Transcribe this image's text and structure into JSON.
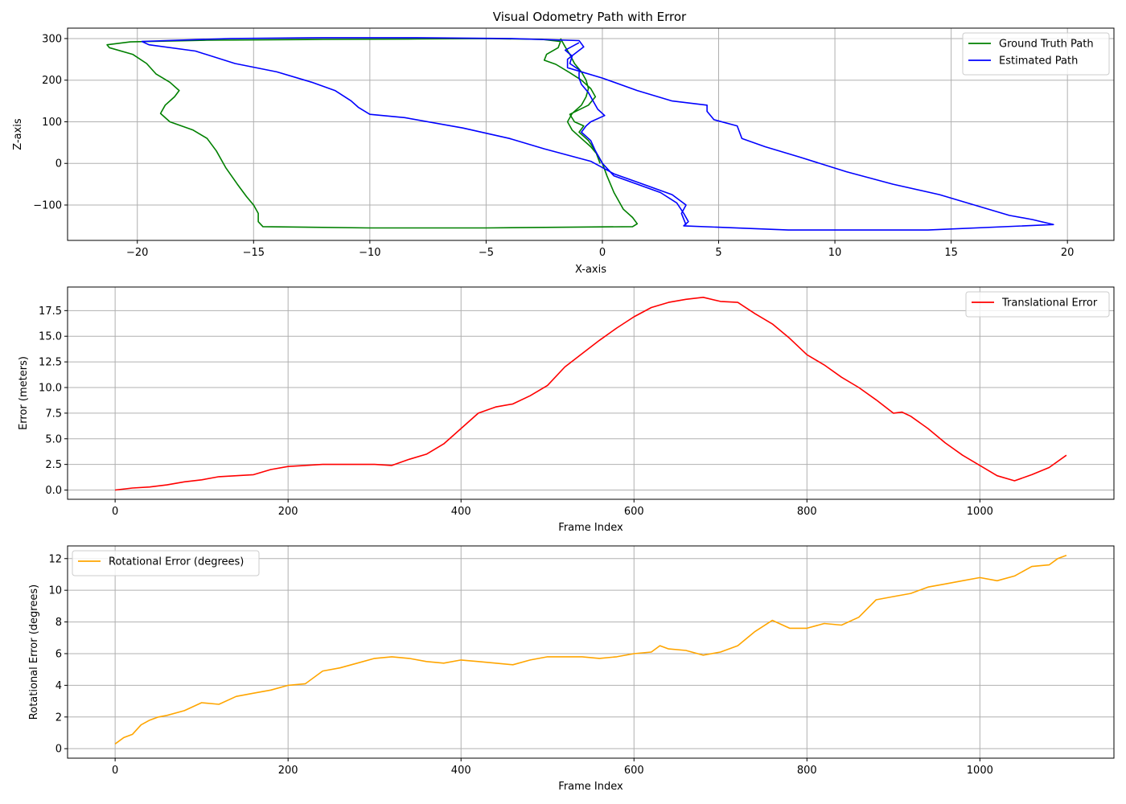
{
  "figure": {
    "title": "Visual Odometry Path with Error"
  },
  "colors": {
    "ground_truth": "#008000",
    "estimated": "#0000ff",
    "translational": "#ff0000",
    "rotational": "#ffa500",
    "grid": "#b0b0b0"
  },
  "chart_data": [
    {
      "type": "line",
      "title": "Visual Odometry Path with Error",
      "xlabel": "X-axis",
      "ylabel": "Z-axis",
      "xlim": [
        -23,
        22
      ],
      "ylim": [
        -185,
        325
      ],
      "xticks": [
        -20,
        -15,
        -10,
        -5,
        0,
        5,
        10,
        15,
        20
      ],
      "yticks": [
        -100,
        0,
        100,
        200,
        300
      ],
      "grid": true,
      "legend_placement": "top-right",
      "series": [
        {
          "name": "Ground Truth Path",
          "color": "#008000",
          "points": [
            [
              -1.8,
              300
            ],
            [
              -1.6,
              280
            ],
            [
              -1.4,
              262
            ],
            [
              -1.2,
              240
            ],
            [
              -0.9,
              220
            ],
            [
              -0.7,
              200
            ],
            [
              -0.6,
              180
            ],
            [
              -0.7,
              160
            ],
            [
              -0.9,
              140
            ],
            [
              -1.3,
              120
            ],
            [
              -1.5,
              100
            ],
            [
              -1.3,
              80
            ],
            [
              -0.9,
              60
            ],
            [
              -0.5,
              40
            ],
            [
              -0.2,
              20
            ],
            [
              0.0,
              0
            ],
            [
              0.2,
              -30
            ],
            [
              0.5,
              -70
            ],
            [
              0.9,
              -110
            ],
            [
              1.3,
              -130
            ],
            [
              1.5,
              -145
            ],
            [
              1.3,
              -152
            ],
            [
              -5,
              -155
            ],
            [
              -10,
              -155
            ],
            [
              -14.6,
              -152
            ],
            [
              -14.8,
              -140
            ],
            [
              -14.8,
              -120
            ],
            [
              -15.0,
              -100
            ],
            [
              -15.3,
              -80
            ],
            [
              -15.7,
              -50
            ],
            [
              -16.2,
              -10
            ],
            [
              -16.6,
              30
            ],
            [
              -17.0,
              60
            ],
            [
              -17.6,
              80
            ],
            [
              -18.6,
              100
            ],
            [
              -19.0,
              120
            ],
            [
              -18.8,
              140
            ],
            [
              -18.4,
              160
            ],
            [
              -18.2,
              175
            ],
            [
              -18.6,
              195
            ],
            [
              -19.2,
              215
            ],
            [
              -19.6,
              240
            ],
            [
              -20.2,
              262
            ],
            [
              -21.2,
              278
            ],
            [
              -21.3,
              285
            ],
            [
              -20.3,
              292
            ],
            [
              -17,
              296
            ],
            [
              -12,
              298
            ],
            [
              -8,
              299
            ],
            [
              -5,
              300
            ],
            [
              -2.6,
              298
            ],
            [
              -1.8,
              293
            ],
            [
              -1.9,
              278
            ],
            [
              -2.4,
              262
            ],
            [
              -2.5,
              248
            ],
            [
              -2.0,
              238
            ],
            [
              -1.4,
              218
            ],
            [
              -0.9,
              200
            ],
            [
              -0.5,
              180
            ],
            [
              -0.3,
              160
            ],
            [
              -0.6,
              140
            ],
            [
              -1.4,
              118
            ],
            [
              -1.2,
              100
            ],
            [
              -0.8,
              90
            ],
            [
              -1.0,
              75
            ],
            [
              -0.6,
              55
            ],
            [
              -0.3,
              30
            ],
            [
              -0.1,
              0
            ]
          ]
        },
        {
          "name": "Estimated Path",
          "color": "#0000ff",
          "points": [
            [
              -1.0,
              290
            ],
            [
              -1.6,
              272
            ],
            [
              -1.3,
              258
            ],
            [
              -1.4,
              240
            ],
            [
              -1.0,
              225
            ],
            [
              -1.0,
              205
            ],
            [
              -0.9,
              190
            ],
            [
              -0.6,
              170
            ],
            [
              -0.4,
              150
            ],
            [
              -0.2,
              130
            ],
            [
              0.1,
              115
            ],
            [
              -0.5,
              100
            ],
            [
              -0.7,
              90
            ],
            [
              -0.9,
              75
            ],
            [
              -0.5,
              55
            ],
            [
              -0.3,
              30
            ],
            [
              0.0,
              0
            ],
            [
              0.5,
              -30
            ],
            [
              1.5,
              -50
            ],
            [
              2.5,
              -70
            ],
            [
              3.2,
              -95
            ],
            [
              3.5,
              -120
            ],
            [
              3.7,
              -140
            ],
            [
              3.5,
              -150
            ],
            [
              8,
              -160
            ],
            [
              14,
              -160
            ],
            [
              19.4,
              -147
            ],
            [
              18.5,
              -135
            ],
            [
              17.5,
              -125
            ],
            [
              16.0,
              -100
            ],
            [
              14.5,
              -75
            ],
            [
              12.5,
              -50
            ],
            [
              10.5,
              -20
            ],
            [
              8.5,
              15
            ],
            [
              7.0,
              40
            ],
            [
              6.0,
              60
            ],
            [
              5.8,
              90
            ],
            [
              4.8,
              105
            ],
            [
              4.5,
              125
            ],
            [
              4.5,
              140
            ],
            [
              3.0,
              150
            ],
            [
              1.5,
              175
            ],
            [
              0.0,
              205
            ],
            [
              -1.5,
              230
            ],
            [
              -1.5,
              250
            ],
            [
              -0.8,
              280
            ],
            [
              -1.0,
              295
            ],
            [
              -4.0,
              300
            ],
            [
              -8,
              302
            ],
            [
              -12,
              302
            ],
            [
              -16,
              300
            ],
            [
              -19.8,
              293
            ],
            [
              -19.5,
              285
            ],
            [
              -17.5,
              270
            ],
            [
              -15.8,
              240
            ],
            [
              -14.0,
              220
            ],
            [
              -12.5,
              195
            ],
            [
              -11.5,
              175
            ],
            [
              -10.8,
              150
            ],
            [
              -10.5,
              135
            ],
            [
              -10.0,
              118
            ],
            [
              -8.5,
              110
            ],
            [
              -6.0,
              85
            ],
            [
              -4.0,
              60
            ],
            [
              -2.5,
              35
            ],
            [
              -0.5,
              5
            ],
            [
              0.5,
              -25
            ],
            [
              1.5,
              -45
            ],
            [
              3.0,
              -75
            ],
            [
              3.6,
              -100
            ],
            [
              3.4,
              -120
            ],
            [
              3.6,
              -148
            ]
          ]
        }
      ]
    },
    {
      "type": "line",
      "xlabel": "Frame Index",
      "ylabel": "Error (meters)",
      "xlim": [
        -55,
        1155
      ],
      "ylim": [
        -0.9,
        19.8
      ],
      "xticks": [
        0,
        200,
        400,
        600,
        800,
        1000
      ],
      "yticks": [
        0.0,
        2.5,
        5.0,
        7.5,
        10.0,
        12.5,
        15.0,
        17.5
      ],
      "grid": true,
      "legend_placement": "top-right",
      "series": [
        {
          "name": "Translational Error",
          "color": "#ff0000",
          "points": [
            [
              0,
              0
            ],
            [
              20,
              0.2
            ],
            [
              40,
              0.3
            ],
            [
              60,
              0.5
            ],
            [
              80,
              0.8
            ],
            [
              100,
              1.0
            ],
            [
              120,
              1.3
            ],
            [
              140,
              1.4
            ],
            [
              160,
              1.5
            ],
            [
              180,
              2.0
            ],
            [
              200,
              2.3
            ],
            [
              220,
              2.4
            ],
            [
              240,
              2.5
            ],
            [
              260,
              2.5
            ],
            [
              280,
              2.5
            ],
            [
              300,
              2.5
            ],
            [
              320,
              2.4
            ],
            [
              340,
              3.0
            ],
            [
              360,
              3.5
            ],
            [
              380,
              4.5
            ],
            [
              400,
              6.0
            ],
            [
              420,
              7.5
            ],
            [
              440,
              8.1
            ],
            [
              460,
              8.4
            ],
            [
              480,
              9.2
            ],
            [
              500,
              10.2
            ],
            [
              520,
              12.0
            ],
            [
              540,
              13.3
            ],
            [
              560,
              14.6
            ],
            [
              580,
              15.8
            ],
            [
              600,
              16.9
            ],
            [
              620,
              17.8
            ],
            [
              640,
              18.3
            ],
            [
              660,
              18.6
            ],
            [
              680,
              18.8
            ],
            [
              700,
              18.4
            ],
            [
              720,
              18.3
            ],
            [
              740,
              17.2
            ],
            [
              760,
              16.2
            ],
            [
              780,
              14.8
            ],
            [
              800,
              13.2
            ],
            [
              820,
              12.2
            ],
            [
              840,
              11.0
            ],
            [
              860,
              10.0
            ],
            [
              880,
              8.8
            ],
            [
              900,
              7.5
            ],
            [
              910,
              7.6
            ],
            [
              920,
              7.2
            ],
            [
              940,
              6.0
            ],
            [
              960,
              4.6
            ],
            [
              980,
              3.4
            ],
            [
              1000,
              2.4
            ],
            [
              1020,
              1.4
            ],
            [
              1040,
              0.9
            ],
            [
              1060,
              1.5
            ],
            [
              1080,
              2.2
            ],
            [
              1100,
              3.4
            ]
          ]
        }
      ]
    },
    {
      "type": "line",
      "xlabel": "Frame Index",
      "ylabel": "Rotational Error (degrees)",
      "xlim": [
        -55,
        1155
      ],
      "ylim": [
        -0.6,
        12.8
      ],
      "xticks": [
        0,
        200,
        400,
        600,
        800,
        1000
      ],
      "yticks": [
        0,
        2,
        4,
        6,
        8,
        10,
        12
      ],
      "grid": true,
      "legend_placement": "top-left",
      "series": [
        {
          "name": "Rotational Error (degrees)",
          "color": "#ffa500",
          "points": [
            [
              0,
              0.3
            ],
            [
              10,
              0.7
            ],
            [
              20,
              0.9
            ],
            [
              30,
              1.5
            ],
            [
              40,
              1.8
            ],
            [
              50,
              2.0
            ],
            [
              60,
              2.1
            ],
            [
              80,
              2.4
            ],
            [
              100,
              2.9
            ],
            [
              120,
              2.8
            ],
            [
              140,
              3.3
            ],
            [
              160,
              3.5
            ],
            [
              180,
              3.7
            ],
            [
              200,
              4.0
            ],
            [
              220,
              4.1
            ],
            [
              240,
              4.9
            ],
            [
              260,
              5.1
            ],
            [
              280,
              5.4
            ],
            [
              300,
              5.7
            ],
            [
              320,
              5.8
            ],
            [
              340,
              5.7
            ],
            [
              360,
              5.5
            ],
            [
              380,
              5.4
            ],
            [
              400,
              5.6
            ],
            [
              420,
              5.5
            ],
            [
              440,
              5.4
            ],
            [
              460,
              5.3
            ],
            [
              480,
              5.6
            ],
            [
              500,
              5.8
            ],
            [
              520,
              5.8
            ],
            [
              540,
              5.8
            ],
            [
              560,
              5.7
            ],
            [
              580,
              5.8
            ],
            [
              600,
              6.0
            ],
            [
              620,
              6.1
            ],
            [
              630,
              6.5
            ],
            [
              640,
              6.3
            ],
            [
              660,
              6.2
            ],
            [
              680,
              5.9
            ],
            [
              700,
              6.1
            ],
            [
              720,
              6.5
            ],
            [
              740,
              7.4
            ],
            [
              760,
              8.1
            ],
            [
              780,
              7.6
            ],
            [
              800,
              7.6
            ],
            [
              820,
              7.9
            ],
            [
              840,
              7.8
            ],
            [
              860,
              8.3
            ],
            [
              880,
              9.4
            ],
            [
              900,
              9.6
            ],
            [
              920,
              9.8
            ],
            [
              940,
              10.2
            ],
            [
              960,
              10.4
            ],
            [
              980,
              10.6
            ],
            [
              1000,
              10.8
            ],
            [
              1020,
              10.6
            ],
            [
              1040,
              10.9
            ],
            [
              1060,
              11.5
            ],
            [
              1080,
              11.6
            ],
            [
              1090,
              12.0
            ],
            [
              1100,
              12.2
            ]
          ]
        }
      ]
    }
  ]
}
